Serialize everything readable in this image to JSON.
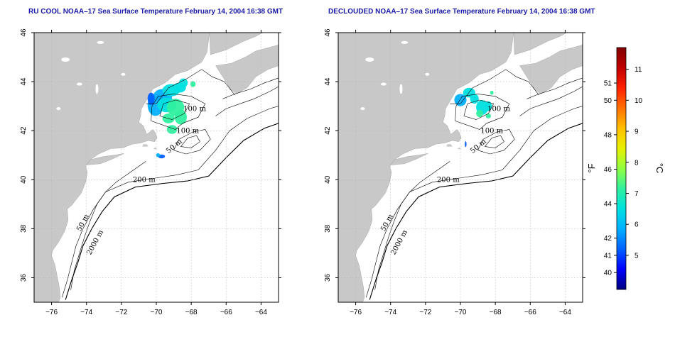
{
  "left_panel": {
    "title": "RU COOL NOAA–17 Sea Surface Temperature February 14, 2004 16:38 GMT"
  },
  "right_panel": {
    "title": "DECLOUDED NOAA–17 Sea Surface Temperature February 14, 2004 16:38 GMT"
  },
  "map": {
    "lon_range": [
      -77,
      -63
    ],
    "lat_range": [
      35,
      46
    ],
    "lon_ticks": [
      -76,
      -74,
      -72,
      -70,
      -68,
      -66,
      -64
    ],
    "lon_tick_labels": [
      "−76",
      "−74",
      "−72",
      "−70",
      "−68",
      "−66",
      "−64"
    ],
    "lat_ticks": [
      36,
      38,
      40,
      42,
      44,
      46
    ],
    "lat_tick_labels": [
      "36",
      "38",
      "40",
      "42",
      "44",
      "46"
    ],
    "grid": true,
    "land_color": "#c8c8c8",
    "water_color": "#ffffff",
    "contour_labels": [
      {
        "text": "100 m",
        "lon": -67.8,
        "lat": 42.8
      },
      {
        "text": "100 m",
        "lon": -68.2,
        "lat": 41.9
      },
      {
        "text": "50 m",
        "lon": -68.9,
        "lat": 41.3
      },
      {
        "text": "200 m",
        "lon": -70.7,
        "lat": 39.9
      },
      {
        "text": "50 m",
        "lon": -74.1,
        "lat": 38.2
      },
      {
        "text": "2000 m",
        "lon": -73.4,
        "lat": 37.4
      }
    ]
  },
  "colorbar": {
    "celsius_ticks": [
      5,
      6,
      7,
      8,
      9,
      10,
      11
    ],
    "fahrenheit_ticks": [
      40,
      41,
      42,
      44,
      46,
      48,
      50,
      51
    ],
    "min_c": 3.9,
    "max_c": 11.7,
    "celsius_label": "°C",
    "fahrenheit_label": "°F",
    "colors": [
      "#000080",
      "#0000ff",
      "#0060ff",
      "#00b0ff",
      "#00e0e0",
      "#30f0a0",
      "#90ff40",
      "#e8f000",
      "#ffc000",
      "#ff7000",
      "#ff2000",
      "#c00000",
      "#800000"
    ]
  }
}
